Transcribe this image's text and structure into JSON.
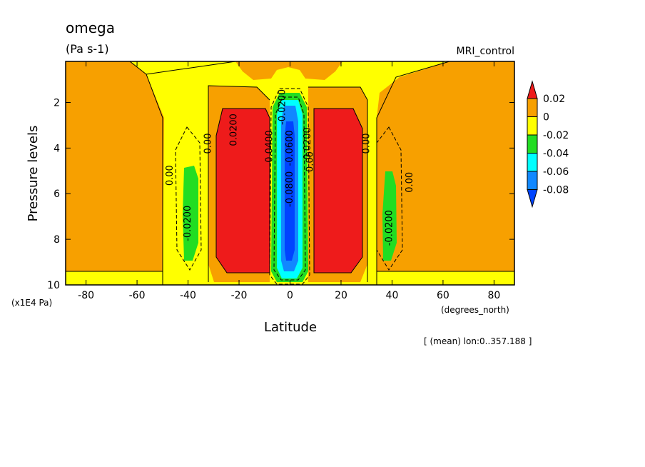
{
  "chart_data": {
    "type": "heatmap",
    "title": "omega",
    "units": "(Pa s-1)",
    "run_label": "MRI_control",
    "xlabel": "Latitude",
    "x_unit": "(degrees_north)",
    "ylabel": "Pressure levels",
    "y_unit": "(x1E4 Pa)",
    "footnote": "[ (mean) lon:0..357.188 ]",
    "xlim": [
      -88,
      88
    ],
    "ylim": [
      10,
      0.2
    ],
    "x_ticks": [
      "-80",
      "-60",
      "-40",
      "-20",
      "0",
      "20",
      "40",
      "60",
      "80"
    ],
    "x_tick_values": [
      -80,
      -60,
      -40,
      -20,
      0,
      20,
      40,
      60,
      80
    ],
    "y_ticks": [
      "2",
      "4",
      "6",
      "8",
      "10"
    ],
    "y_tick_values": [
      2,
      4,
      6,
      8,
      10
    ],
    "colorbar": {
      "labels": [
        "0.02",
        "0",
        "-0.02",
        "-0.04",
        "-0.06",
        "-0.08"
      ],
      "bands": [
        {
          "range": "> 0.02",
          "color": "#ee1b1b"
        },
        {
          "range": "0 to 0.02",
          "color": "#f7a000"
        },
        {
          "range": "-0.02 to 0",
          "color": "#ffff00"
        },
        {
          "range": "-0.04 to -0.02",
          "color": "#22dd22"
        },
        {
          "range": "-0.06 to -0.04",
          "color": "#00ffff"
        },
        {
          "range": "-0.08 to -0.06",
          "color": "#1188ff"
        },
        {
          "range": "< -0.08",
          "color": "#0044ff"
        }
      ]
    },
    "contour_labels": [
      {
        "text": "0.00",
        "lat": -46,
        "p": 5.2
      },
      {
        "text": "0.00",
        "lat": -31,
        "p": 3.8
      },
      {
        "text": "-0.0200",
        "lat": -39,
        "p": 7.3
      },
      {
        "text": "0.0200",
        "lat": -21,
        "p": 3.2
      },
      {
        "text": "0.00",
        "lat": 31,
        "p": 3.8
      },
      {
        "text": "0.00",
        "lat": 48,
        "p": 5.5
      },
      {
        "text": "-0.0200",
        "lat": 40,
        "p": 7.5
      },
      {
        "text": "0.0200",
        "lat": 8,
        "p": 3.8
      },
      {
        "text": "0.00",
        "lat": 9,
        "p": 4.6
      },
      {
        "text": "-0.0200",
        "lat": -2,
        "p": 2.2
      },
      {
        "text": "-0.0600",
        "lat": 1,
        "p": 4.0
      },
      {
        "text": "-0.0800",
        "lat": 1,
        "p": 5.8
      },
      {
        "text": "-0.0400",
        "lat": -7,
        "p": 4.0
      }
    ]
  }
}
